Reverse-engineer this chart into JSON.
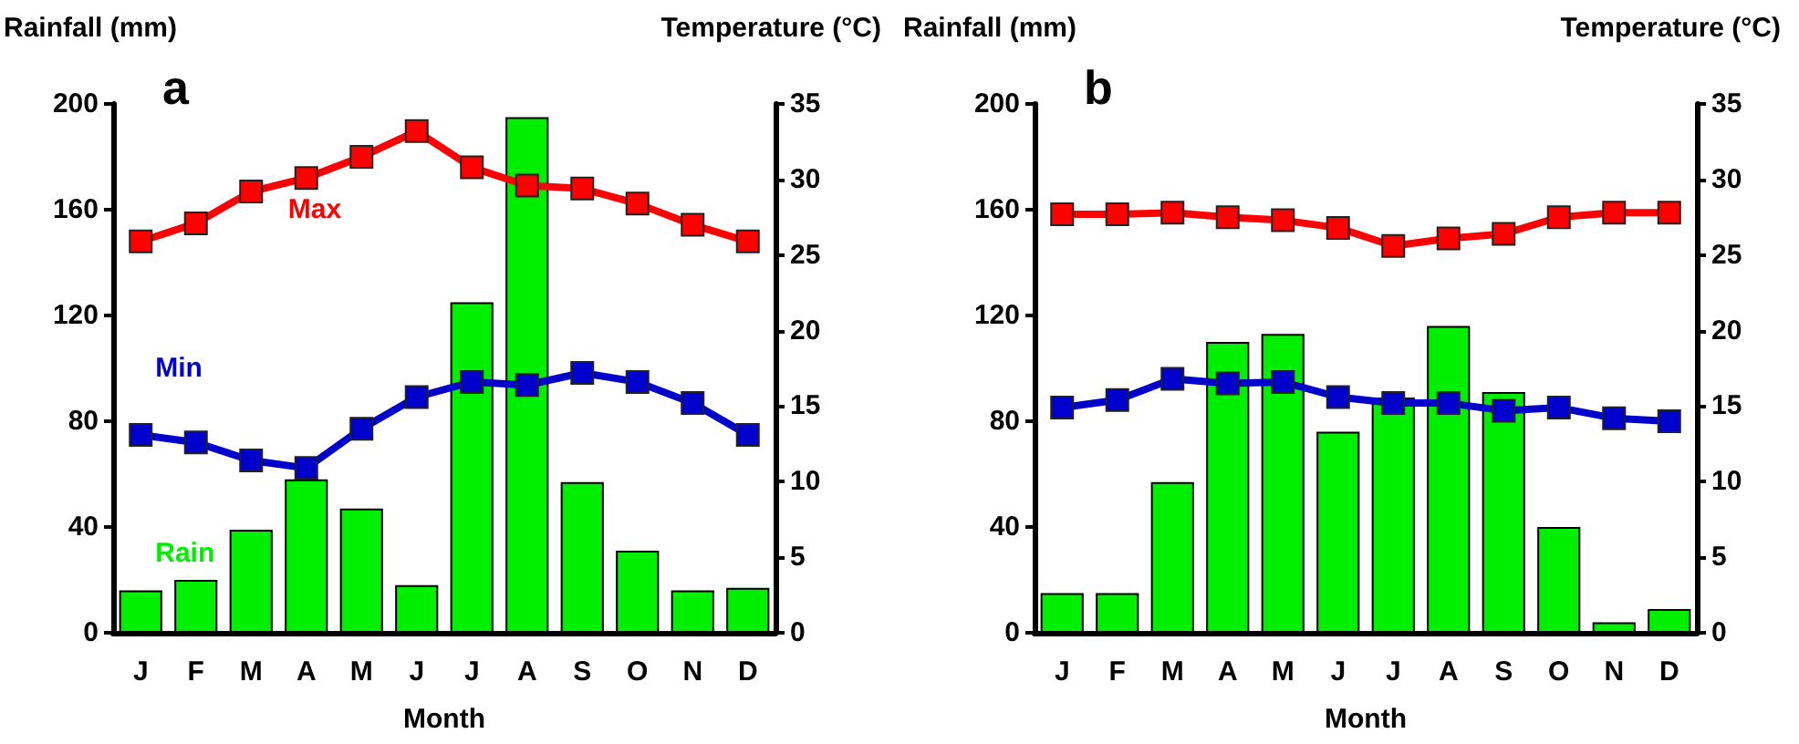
{
  "chart_data": [
    {
      "type": "bar",
      "title": "a",
      "xlabel": "Month",
      "ylabel": "Rainfall (mm)",
      "y2label": "Temperature (°C)",
      "categories": [
        "J",
        "F",
        "M",
        "A",
        "M",
        "J",
        "J",
        "A",
        "S",
        "O",
        "N",
        "D"
      ],
      "ylim": [
        0,
        200
      ],
      "yticks": [
        0,
        40,
        80,
        120,
        160,
        200
      ],
      "y2lim": [
        0,
        35
      ],
      "y2ticks": [
        0,
        5,
        10,
        15,
        20,
        25,
        30,
        35
      ],
      "grid": false,
      "legend": false,
      "marker": "square",
      "line_style": "solid",
      "series": [
        {
          "name": "Rain",
          "color": "#00ee00",
          "values": [
            16,
            20,
            39,
            58,
            47,
            18,
            125,
            195,
            57,
            31,
            16,
            17
          ]
        },
        {
          "name": "Max",
          "type": "line",
          "axis": "y2",
          "color": "#ff0000",
          "values": [
            25.9,
            27.1,
            29.2,
            30.1,
            31.5,
            33.2,
            30.8,
            29.6,
            29.4,
            28.4,
            27.0,
            25.9
          ]
        },
        {
          "name": "Min",
          "type": "line",
          "axis": "y2",
          "color": "#0000cc",
          "values": [
            13.1,
            12.6,
            11.4,
            10.9,
            13.5,
            15.6,
            16.6,
            16.4,
            17.2,
            16.6,
            15.2,
            13.1
          ]
        }
      ]
    },
    {
      "type": "bar",
      "title": "b",
      "xlabel": "Month",
      "ylabel": "Rainfall (mm)",
      "y2label": "Temperature (°C)",
      "categories": [
        "J",
        "F",
        "M",
        "A",
        "M",
        "J",
        "J",
        "A",
        "S",
        "O",
        "N",
        "D"
      ],
      "ylim": [
        0,
        200
      ],
      "yticks": [
        0,
        40,
        80,
        120,
        160,
        200
      ],
      "y2lim": [
        0,
        35
      ],
      "y2ticks": [
        0,
        5,
        10,
        15,
        20,
        25,
        30,
        35
      ],
      "grid": false,
      "legend": false,
      "marker": "square",
      "line_style": "solid",
      "series": [
        {
          "color": "#00ee00",
          "values": [
            15,
            15,
            57,
            110,
            113,
            76,
            89,
            116,
            91,
            40,
            4,
            9
          ]
        },
        {
          "type": "line",
          "axis": "y2",
          "color": "#ff0000",
          "values": [
            27.7,
            27.7,
            27.8,
            27.5,
            27.3,
            26.8,
            25.6,
            26.1,
            26.4,
            27.5,
            27.8,
            27.8
          ]
        },
        {
          "type": "line",
          "axis": "y2",
          "color": "#0000cc",
          "values": [
            14.9,
            15.4,
            16.8,
            16.5,
            16.6,
            15.6,
            15.2,
            15.2,
            14.7,
            14.9,
            14.2,
            14.0
          ]
        }
      ]
    }
  ]
}
